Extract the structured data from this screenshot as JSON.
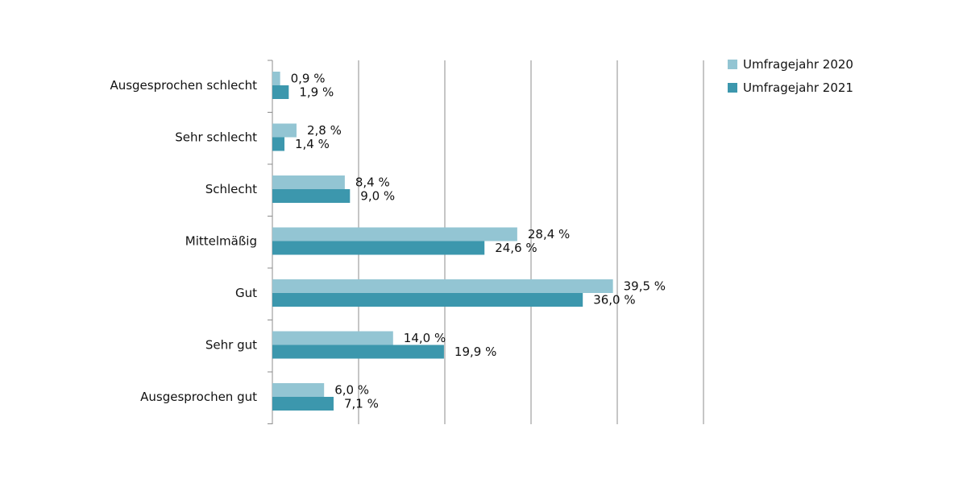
{
  "chart_data": {
    "type": "bar",
    "orientation": "horizontal",
    "categories": [
      "Ausgesprochen schlecht",
      "Sehr schlecht",
      "Schlecht",
      "Mittelmäßig",
      "Gut",
      "Sehr gut",
      "Ausgesprochen gut"
    ],
    "series": [
      {
        "name": "Umfragejahr 2020",
        "color": "#93c5d3",
        "values": [
          0.9,
          2.8,
          8.4,
          28.4,
          39.5,
          14.0,
          6.0
        ],
        "labels": [
          "0,9 %",
          "2,8 %",
          "8,4 %",
          "28,4 %",
          "39,5 %",
          "14,0 %",
          "6,0 %"
        ]
      },
      {
        "name": "Umfragejahr 2021",
        "color": "#3c97ad",
        "values": [
          1.9,
          1.4,
          9.0,
          24.6,
          36.0,
          19.9,
          7.1
        ],
        "labels": [
          "1,9 %",
          "1,4 %",
          "9,0 %",
          "24,6 %",
          "36,0 %",
          "19,9 %",
          "7,1 %"
        ]
      }
    ],
    "xlim": [
      0,
      50
    ],
    "grid_step": 10,
    "grid": true,
    "tick_labels_shown": false,
    "legend_position": "top-right",
    "title": "",
    "xlabel": "",
    "ylabel": ""
  }
}
